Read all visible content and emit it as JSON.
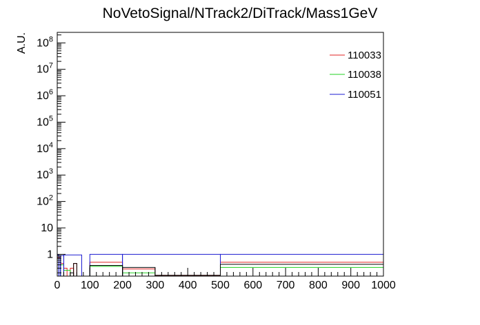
{
  "chart_data": {
    "type": "line",
    "title": "NoVetoSignal/NTrack2/DiTrack/Mass1GeV",
    "xlabel": "",
    "ylabel": "A.U.",
    "xlim": [
      0,
      1000
    ],
    "ylim": [
      0.15,
      250000000
    ],
    "y_scale": "log",
    "grid": false,
    "legend_position": "top-right",
    "x_tick_labels": [
      "0",
      "100",
      "200",
      "300",
      "400",
      "500",
      "600",
      "700",
      "800",
      "900",
      "1000"
    ],
    "y_tick_labels": [
      "1",
      "10",
      "10^2",
      "10^3",
      "10^4",
      "10^5",
      "10^6",
      "10^7",
      "10^8"
    ],
    "series": [
      {
        "name": "110033",
        "color": "#e02020",
        "bins": [
          {
            "x0": 0,
            "x1": 10,
            "value": 0.75
          },
          {
            "x0": 10,
            "x1": 20,
            "value": 0.45
          },
          {
            "x0": 20,
            "x1": 30,
            "value": 0.3
          },
          {
            "x0": 30,
            "x1": 40,
            "value": 0.15
          },
          {
            "x0": 40,
            "x1": 50,
            "value": 0.3
          },
          {
            "x0": 50,
            "x1": 60,
            "value": 0.45
          },
          {
            "x0": 60,
            "x1": 80,
            "value": 0.15
          },
          {
            "x0": 100,
            "x1": 200,
            "value": 0.5
          },
          {
            "x0": 200,
            "x1": 300,
            "value": 0.28
          },
          {
            "x0": 300,
            "x1": 500,
            "value": 0.16
          },
          {
            "x0": 500,
            "x1": 1000,
            "value": 0.5
          }
        ]
      },
      {
        "name": "110038",
        "color": "#20d020",
        "bins": [
          {
            "x0": 0,
            "x1": 10,
            "value": 0.7
          },
          {
            "x0": 10,
            "x1": 20,
            "value": 0.4
          },
          {
            "x0": 20,
            "x1": 40,
            "value": 0.25
          },
          {
            "x0": 100,
            "x1": 200,
            "value": 0.35
          },
          {
            "x0": 200,
            "x1": 300,
            "value": 0.2
          },
          {
            "x0": 500,
            "x1": 1000,
            "value": 0.32
          }
        ]
      },
      {
        "name": "110051",
        "color": "#1a1ad0",
        "bins": [
          {
            "x0": 0,
            "x1": 5,
            "value": 0.95
          },
          {
            "x0": 5,
            "x1": 10,
            "value": 0.5
          },
          {
            "x0": 10,
            "x1": 20,
            "value": 0.9
          },
          {
            "x0": 20,
            "x1": 75,
            "value": 0.95
          },
          {
            "x0": 100,
            "x1": 200,
            "value": 1.0
          },
          {
            "x0": 200,
            "x1": 500,
            "value": 1.0
          },
          {
            "x0": 500,
            "x1": 1000,
            "value": 1.0
          }
        ]
      },
      {
        "name": "",
        "color": "#000000",
        "bins": [
          {
            "x0": 40,
            "x1": 50,
            "value": 0.2
          },
          {
            "x0": 50,
            "x1": 60,
            "value": 0.45
          },
          {
            "x0": 100,
            "x1": 200,
            "value": 0.38
          },
          {
            "x0": 200,
            "x1": 300,
            "value": 0.32
          },
          {
            "x0": 300,
            "x1": 500,
            "value": 0.16
          },
          {
            "x0": 500,
            "x1": 1000,
            "value": 0.42
          }
        ]
      }
    ]
  }
}
